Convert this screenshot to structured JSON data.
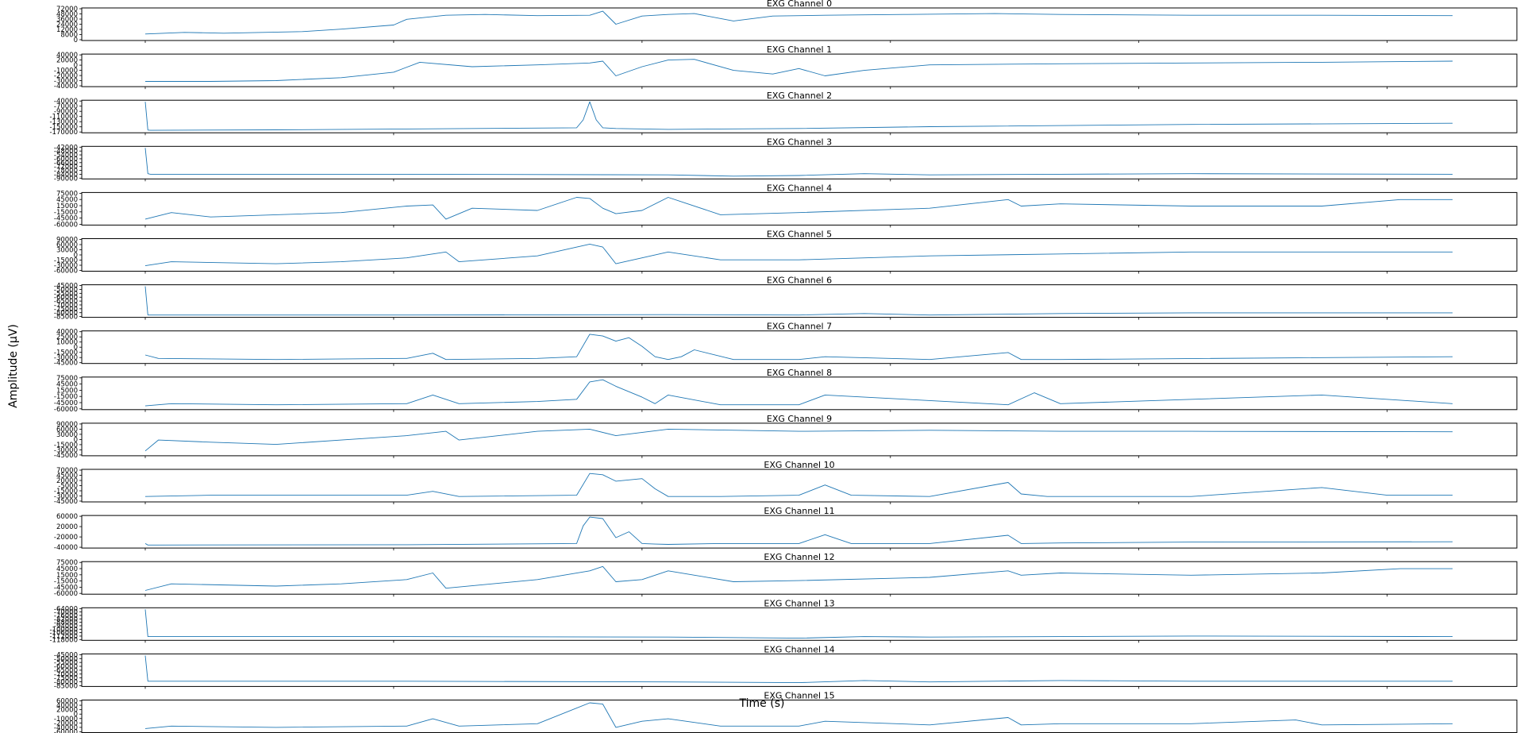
{
  "figure": {
    "ylabel": "Amplitude (µV)",
    "xlabel": "Time (s)",
    "line_color": "#1f77b4"
  },
  "chart_data": [
    {
      "type": "line",
      "title": "EXG Channel 0",
      "yticks": [
        "72000",
        "48000",
        "36000",
        "24000",
        "12000",
        "8000",
        "0"
      ],
      "ylim": [
        0,
        72000
      ],
      "grid": false,
      "x": [
        0.0,
        0.03,
        0.06,
        0.09,
        0.12,
        0.15,
        0.19,
        0.2,
        0.23,
        0.26,
        0.3,
        0.34,
        0.35,
        0.36,
        0.38,
        0.4,
        0.42,
        0.45,
        0.48,
        0.52,
        0.58,
        0.65,
        0.7,
        0.8,
        0.9,
        1.0
      ],
      "y": [
        12000,
        16000,
        14000,
        16000,
        18000,
        24000,
        34000,
        48000,
        58000,
        60000,
        57000,
        58000,
        68000,
        36000,
        56000,
        60000,
        62000,
        44000,
        56000,
        58000,
        60000,
        62000,
        60000,
        58000,
        58000,
        57000
      ]
    },
    {
      "type": "line",
      "title": "EXG Channel 1",
      "yticks": [
        "40000",
        "20000",
        "0",
        "-10000",
        "-20000",
        "-30000",
        "-40000"
      ],
      "ylim": [
        -40000,
        40000
      ],
      "grid": false,
      "x": [
        0.0,
        0.05,
        0.1,
        0.15,
        0.19,
        0.21,
        0.25,
        0.3,
        0.34,
        0.35,
        0.36,
        0.38,
        0.4,
        0.42,
        0.45,
        0.48,
        0.5,
        0.52,
        0.55,
        0.6,
        0.7,
        0.8,
        0.9,
        1.0
      ],
      "y": [
        -30000,
        -30000,
        -28000,
        -20000,
        -5000,
        22000,
        10000,
        15000,
        20000,
        25000,
        -15000,
        10000,
        28000,
        30000,
        0,
        -10000,
        5000,
        -15000,
        0,
        15000,
        18000,
        20000,
        22000,
        25000
      ]
    },
    {
      "type": "line",
      "title": "EXG Channel 2",
      "yticks": [
        "-40000",
        "-70000",
        "-90000",
        "-110000",
        "-130000",
        "-150000",
        "-170000"
      ],
      "ylim": [
        -170000,
        -40000
      ],
      "grid": false,
      "x": [
        0.0,
        0.002,
        0.004,
        0.1,
        0.2,
        0.33,
        0.335,
        0.34,
        0.345,
        0.35,
        0.36,
        0.4,
        0.5,
        0.6,
        0.8,
        1.0
      ],
      "y": [
        -40000,
        -165000,
        -166000,
        -164000,
        -160000,
        -155000,
        -120000,
        -40000,
        -120000,
        -155000,
        -158000,
        -162000,
        -158000,
        -150000,
        -140000,
        -135000
      ]
    },
    {
      "type": "line",
      "title": "EXG Channel 3",
      "yticks": [
        "-42000",
        "-48000",
        "-54000",
        "-60000",
        "-66000",
        "-72000",
        "-78000",
        "-84000",
        "-90000"
      ],
      "ylim": [
        -90000,
        -42000
      ],
      "grid": false,
      "x": [
        0.0,
        0.002,
        0.004,
        0.2,
        0.4,
        0.45,
        0.5,
        0.55,
        0.6,
        0.7,
        0.8,
        1.0
      ],
      "y": [
        -42000,
        -84000,
        -85000,
        -85000,
        -86000,
        -88000,
        -87000,
        -84000,
        -86000,
        -85000,
        -84000,
        -85000
      ]
    },
    {
      "type": "line",
      "title": "EXG Channel 4",
      "yticks": [
        "75000",
        "45000",
        "15000",
        "-15000",
        "-45000",
        "-60000"
      ],
      "ylim": [
        -60000,
        75000
      ],
      "grid": false,
      "x": [
        0.0,
        0.02,
        0.05,
        0.1,
        0.15,
        0.2,
        0.22,
        0.23,
        0.25,
        0.3,
        0.32,
        0.33,
        0.34,
        0.35,
        0.36,
        0.38,
        0.4,
        0.44,
        0.5,
        0.6,
        0.66,
        0.67,
        0.7,
        0.8,
        0.9,
        0.96,
        1.0
      ],
      "y": [
        -40000,
        -10000,
        -30000,
        -20000,
        -10000,
        20000,
        25000,
        -40000,
        10000,
        0,
        40000,
        60000,
        55000,
        10000,
        -15000,
        0,
        60000,
        -20000,
        -10000,
        10000,
        50000,
        20000,
        30000,
        20000,
        20000,
        50000,
        50000
      ]
    },
    {
      "type": "line",
      "title": "EXG Channel 5",
      "yticks": [
        "90000",
        "60000",
        "30000",
        "0",
        "-15000",
        "-30000",
        "-60000"
      ],
      "ylim": [
        -60000,
        90000
      ],
      "grid": false,
      "x": [
        0.0,
        0.02,
        0.1,
        0.15,
        0.2,
        0.23,
        0.24,
        0.3,
        0.32,
        0.34,
        0.35,
        0.36,
        0.38,
        0.4,
        0.44,
        0.5,
        0.6,
        0.7,
        0.8,
        1.0
      ],
      "y": [
        -40000,
        -20000,
        -30000,
        -20000,
        0,
        30000,
        -20000,
        10000,
        40000,
        70000,
        55000,
        -30000,
        0,
        30000,
        -10000,
        -10000,
        10000,
        20000,
        30000,
        30000
      ]
    },
    {
      "type": "line",
      "title": "EXG Channel 6",
      "yticks": [
        "-45000",
        "-50000",
        "-55000",
        "-60000",
        "-65000",
        "-70000",
        "-75000",
        "-80000",
        "-85000"
      ],
      "ylim": [
        -85000,
        -45000
      ],
      "grid": false,
      "x": [
        0.0,
        0.002,
        0.004,
        0.2,
        0.4,
        0.5,
        0.55,
        0.6,
        0.7,
        0.8,
        1.0
      ],
      "y": [
        -45000,
        -84000,
        -84000,
        -84000,
        -83500,
        -84000,
        -82000,
        -84000,
        -82000,
        -81000,
        -81000
      ]
    },
    {
      "type": "line",
      "title": "EXG Channel 7",
      "yticks": [
        "40000",
        "25000",
        "10000",
        "0",
        "-15000",
        "-30000",
        "-45000"
      ],
      "ylim": [
        -45000,
        40000
      ],
      "grid": false,
      "x": [
        0.0,
        0.01,
        0.1,
        0.2,
        0.22,
        0.23,
        0.3,
        0.33,
        0.34,
        0.35,
        0.36,
        0.37,
        0.38,
        0.39,
        0.4,
        0.41,
        0.42,
        0.45,
        0.5,
        0.52,
        0.6,
        0.66,
        0.67,
        0.7,
        1.0
      ],
      "y": [
        -25000,
        -35000,
        -38000,
        -35000,
        -20000,
        -38000,
        -35000,
        -30000,
        35000,
        30000,
        15000,
        25000,
        0,
        -30000,
        -38000,
        -30000,
        -10000,
        -38000,
        -38000,
        -30000,
        -38000,
        -18000,
        -38000,
        -38000,
        -30000
      ]
    },
    {
      "type": "line",
      "title": "EXG Channel 8",
      "yticks": [
        "75000",
        "45000",
        "15000",
        "-15000",
        "-45000",
        "-60000"
      ],
      "ylim": [
        -60000,
        75000
      ],
      "grid": false,
      "x": [
        0.0,
        0.02,
        0.1,
        0.2,
        0.22,
        0.24,
        0.3,
        0.33,
        0.34,
        0.35,
        0.36,
        0.38,
        0.39,
        0.4,
        0.44,
        0.5,
        0.52,
        0.66,
        0.68,
        0.7,
        0.9,
        1.0
      ],
      "y": [
        -50000,
        -40000,
        -45000,
        -40000,
        0,
        -40000,
        -30000,
        -20000,
        60000,
        70000,
        40000,
        -10000,
        -40000,
        0,
        -45000,
        -45000,
        0,
        -45000,
        10000,
        -40000,
        0,
        -40000
      ]
    },
    {
      "type": "line",
      "title": "EXG Channel 9",
      "yticks": [
        "90000",
        "60000",
        "30000",
        "0",
        "-15000",
        "-30000",
        "-45000"
      ],
      "ylim": [
        -45000,
        90000
      ],
      "grid": false,
      "x": [
        0.0,
        0.01,
        0.05,
        0.1,
        0.15,
        0.2,
        0.23,
        0.24,
        0.3,
        0.34,
        0.36,
        0.4,
        0.5,
        0.6,
        0.7,
        0.8,
        1.0
      ],
      "y": [
        -30000,
        20000,
        10000,
        0,
        20000,
        40000,
        60000,
        20000,
        60000,
        70000,
        40000,
        70000,
        60000,
        65000,
        60000,
        60000,
        58000
      ]
    },
    {
      "type": "line",
      "title": "EXG Channel 10",
      "yticks": [
        "70000",
        "45000",
        "20000",
        "-5000",
        "-15000",
        "-30000",
        "-45000"
      ],
      "ylim": [
        -45000,
        70000
      ],
      "grid": false,
      "x": [
        0.0,
        0.05,
        0.2,
        0.22,
        0.24,
        0.33,
        0.34,
        0.35,
        0.36,
        0.38,
        0.39,
        0.4,
        0.44,
        0.5,
        0.52,
        0.54,
        0.6,
        0.66,
        0.67,
        0.69,
        0.8,
        0.9,
        0.95,
        1.0
      ],
      "y": [
        -30000,
        -25000,
        -25000,
        -10000,
        -30000,
        -25000,
        60000,
        55000,
        30000,
        40000,
        0,
        -30000,
        -30000,
        -25000,
        15000,
        -25000,
        -30000,
        25000,
        -20000,
        -30000,
        -30000,
        5000,
        -25000,
        -25000
      ]
    },
    {
      "type": "line",
      "title": "EXG Channel 11",
      "yticks": [
        "60000",
        "20000",
        "-20000",
        "-40000"
      ],
      "ylim": [
        -40000,
        60000
      ],
      "grid": false,
      "x": [
        0.0,
        0.002,
        0.01,
        0.2,
        0.33,
        0.335,
        0.34,
        0.35,
        0.36,
        0.37,
        0.38,
        0.39,
        0.4,
        0.44,
        0.5,
        0.52,
        0.54,
        0.6,
        0.66,
        0.67,
        0.7,
        0.8,
        1.0
      ],
      "y": [
        -30000,
        -35000,
        -35000,
        -34000,
        -30000,
        30000,
        60000,
        55000,
        -10000,
        10000,
        -30000,
        -32000,
        -33000,
        -30000,
        -30000,
        0,
        -30000,
        -30000,
        -2000,
        -30000,
        -28000,
        -25000,
        -24000
      ]
    },
    {
      "type": "line",
      "title": "EXG Channel 12",
      "yticks": [
        "75000",
        "45000",
        "15000",
        "-15000",
        "-45000",
        "-60000"
      ],
      "ylim": [
        -60000,
        75000
      ],
      "grid": false,
      "x": [
        0.0,
        0.02,
        0.1,
        0.15,
        0.2,
        0.22,
        0.23,
        0.3,
        0.34,
        0.35,
        0.36,
        0.38,
        0.4,
        0.45,
        0.5,
        0.6,
        0.66,
        0.67,
        0.7,
        0.8,
        0.9,
        0.96,
        1.0
      ],
      "y": [
        -50000,
        -20000,
        -30000,
        -20000,
        0,
        30000,
        -40000,
        0,
        40000,
        60000,
        -10000,
        0,
        40000,
        -10000,
        -5000,
        10000,
        40000,
        20000,
        30000,
        20000,
        30000,
        50000,
        50000
      ]
    },
    {
      "type": "line",
      "title": "EXG Channel 13",
      "yticks": [
        "-64000",
        "-70000",
        "-76000",
        "-82000",
        "-88000",
        "-94000",
        "-100000",
        "-106000",
        "-112000",
        "-118000"
      ],
      "ylim": [
        -118000,
        -64000
      ],
      "grid": false,
      "x": [
        0.0,
        0.002,
        0.004,
        0.2,
        0.4,
        0.5,
        0.55,
        0.6,
        0.7,
        0.8,
        1.0
      ],
      "y": [
        -64000,
        -114000,
        -114000,
        -114000,
        -115000,
        -117000,
        -114000,
        -115000,
        -114000,
        -113000,
        -114000
      ]
    },
    {
      "type": "line",
      "title": "EXG Channel 14",
      "yticks": [
        "-45000",
        "-50000",
        "-55000",
        "-60000",
        "-65000",
        "-70000",
        "-75000",
        "-80000",
        "-85000"
      ],
      "ylim": [
        -85000,
        -45000
      ],
      "grid": false,
      "x": [
        0.0,
        0.002,
        0.004,
        0.2,
        0.4,
        0.5,
        0.55,
        0.6,
        0.7,
        0.8,
        1.0
      ],
      "y": [
        -45000,
        -80000,
        -80000,
        -80000,
        -81000,
        -82000,
        -79000,
        -81000,
        -79000,
        -80000,
        -80000
      ]
    },
    {
      "type": "line",
      "title": "EXG Channel 15",
      "yticks": [
        "60000",
        "40000",
        "20000",
        "0",
        "-10000",
        "-20000",
        "-40000",
        "-60000"
      ],
      "ylim": [
        -60000,
        60000
      ],
      "grid": false,
      "x": [
        0.0,
        0.02,
        0.1,
        0.2,
        0.22,
        0.24,
        0.3,
        0.34,
        0.35,
        0.36,
        0.38,
        0.4,
        0.44,
        0.5,
        0.52,
        0.6,
        0.66,
        0.67,
        0.7,
        0.8,
        0.88,
        0.9,
        1.0
      ],
      "y": [
        -50000,
        -40000,
        -45000,
        -40000,
        -10000,
        -40000,
        -30000,
        55000,
        50000,
        -45000,
        -20000,
        -10000,
        -40000,
        -40000,
        -20000,
        -35000,
        -5000,
        -35000,
        -30000,
        -30000,
        -15000,
        -35000,
        -30000
      ]
    }
  ]
}
